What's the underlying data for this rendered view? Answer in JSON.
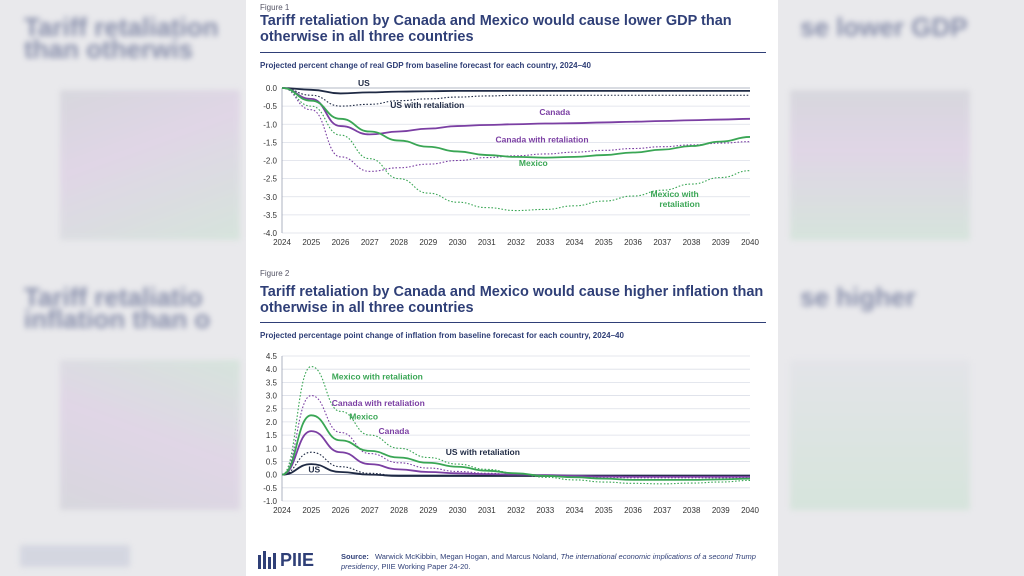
{
  "figure1": {
    "label": "Figure 1",
    "title": "Tariff retaliation by Canada and Mexico would cause lower GDP than otherwise in all three countries",
    "subtitle": "Projected percent change of real GDP from baseline forecast for each country, 2024–40",
    "chart_data": {
      "type": "line",
      "x": [
        2024,
        2025,
        2026,
        2027,
        2028,
        2029,
        2030,
        2031,
        2032,
        2033,
        2034,
        2035,
        2036,
        2037,
        2038,
        2039,
        2040
      ],
      "ylim": [
        -4.0,
        0.0
      ],
      "yticks": [
        "0.0",
        "-0.5",
        "-1.0",
        "-1.5",
        "-2.0",
        "-2.5",
        "-3.0",
        "-3.5",
        "-4.0"
      ],
      "series": [
        {
          "name": "US",
          "color": "#1f2a44",
          "dashed": false,
          "values": [
            0,
            -0.05,
            -0.15,
            -0.12,
            -0.1,
            -0.09,
            -0.08,
            -0.08,
            -0.08,
            -0.08,
            -0.08,
            -0.08,
            -0.08,
            -0.08,
            -0.08,
            -0.08,
            -0.08
          ]
        },
        {
          "name": "US with retaliation",
          "color": "#1f2a44",
          "dashed": true,
          "values": [
            0,
            -0.2,
            -0.5,
            -0.45,
            -0.35,
            -0.3,
            -0.25,
            -0.22,
            -0.2,
            -0.2,
            -0.2,
            -0.2,
            -0.2,
            -0.2,
            -0.2,
            -0.2,
            -0.2
          ]
        },
        {
          "name": "Canada",
          "color": "#7b3fa3",
          "dashed": false,
          "values": [
            0,
            -0.3,
            -1.05,
            -1.28,
            -1.2,
            -1.12,
            -1.05,
            -1.02,
            -1.0,
            -0.98,
            -0.97,
            -0.95,
            -0.93,
            -0.91,
            -0.89,
            -0.87,
            -0.85
          ]
        },
        {
          "name": "Canada with retaliation",
          "color": "#7b3fa3",
          "dashed": true,
          "values": [
            0,
            -0.6,
            -1.9,
            -2.3,
            -2.2,
            -2.1,
            -2.0,
            -1.92,
            -1.87,
            -1.82,
            -1.77,
            -1.72,
            -1.67,
            -1.62,
            -1.57,
            -1.52,
            -1.48
          ]
        },
        {
          "name": "Mexico",
          "color": "#3aa655",
          "dashed": false,
          "values": [
            0,
            -0.35,
            -0.85,
            -1.2,
            -1.45,
            -1.62,
            -1.75,
            -1.85,
            -1.9,
            -1.92,
            -1.9,
            -1.85,
            -1.78,
            -1.7,
            -1.6,
            -1.48,
            -1.35
          ]
        },
        {
          "name": "Mexico with retaliation",
          "color": "#3aa655",
          "dashed": true,
          "values": [
            0,
            -0.5,
            -1.3,
            -1.95,
            -2.5,
            -2.9,
            -3.15,
            -3.3,
            -3.38,
            -3.35,
            -3.25,
            -3.12,
            -2.98,
            -2.82,
            -2.65,
            -2.47,
            -2.28
          ]
        }
      ],
      "labels": {
        "us": "US",
        "us_ret": "US with retaliation",
        "canada": "Canada",
        "canada_ret": "Canada with retaliation",
        "mexico": "Mexico",
        "mexico_ret_1": "Mexico with",
        "mexico_ret_2": "retaliation"
      }
    }
  },
  "figure2": {
    "label": "Figure 2",
    "title": "Tariff retaliation by Canada and Mexico would cause higher inflation than otherwise in all three countries",
    "subtitle": "Projected percentage point change of inflation from baseline forecast for each country, 2024–40",
    "chart_data": {
      "type": "line",
      "x": [
        2024,
        2025,
        2026,
        2027,
        2028,
        2029,
        2030,
        2031,
        2032,
        2033,
        2034,
        2035,
        2036,
        2037,
        2038,
        2039,
        2040
      ],
      "ylim": [
        -1.0,
        4.5
      ],
      "yticks": [
        "4.5",
        "4.0",
        "3.5",
        "3.0",
        "2.5",
        "2.0",
        "1.5",
        "1.0",
        "0.5",
        "0.0",
        "-0.5",
        "-1.0"
      ],
      "series": [
        {
          "name": "US",
          "color": "#1f2a44",
          "dashed": false,
          "values": [
            0,
            0.4,
            0.1,
            0.0,
            -0.05,
            -0.05,
            -0.05,
            -0.05,
            -0.05,
            -0.05,
            -0.05,
            -0.05,
            -0.05,
            -0.05,
            -0.05,
            -0.05,
            -0.05
          ]
        },
        {
          "name": "US with retaliation",
          "color": "#1f2a44",
          "dashed": true,
          "values": [
            0,
            0.85,
            0.3,
            0.05,
            -0.05,
            -0.05,
            -0.05,
            -0.05,
            -0.05,
            -0.05,
            -0.05,
            -0.05,
            -0.05,
            -0.05,
            -0.05,
            -0.05,
            -0.05
          ]
        },
        {
          "name": "Canada",
          "color": "#7b3fa3",
          "dashed": false,
          "values": [
            0,
            1.65,
            0.85,
            0.4,
            0.2,
            0.1,
            0.05,
            0.02,
            0.0,
            -0.02,
            -0.05,
            -0.07,
            -0.08,
            -0.08,
            -0.08,
            -0.08,
            -0.08
          ]
        },
        {
          "name": "Canada with retaliation",
          "color": "#7b3fa3",
          "dashed": true,
          "values": [
            0,
            3.0,
            1.6,
            0.8,
            0.45,
            0.25,
            0.12,
            0.05,
            0.0,
            -0.05,
            -0.08,
            -0.1,
            -0.12,
            -0.12,
            -0.12,
            -0.12,
            -0.12
          ]
        },
        {
          "name": "Mexico",
          "color": "#3aa655",
          "dashed": false,
          "values": [
            0,
            2.25,
            1.3,
            0.9,
            0.65,
            0.45,
            0.3,
            0.15,
            0.05,
            -0.05,
            -0.1,
            -0.15,
            -0.2,
            -0.2,
            -0.2,
            -0.18,
            -0.15
          ]
        },
        {
          "name": "Mexico with retaliation",
          "color": "#3aa655",
          "dashed": true,
          "values": [
            0,
            4.1,
            2.4,
            1.5,
            1.0,
            0.65,
            0.4,
            0.2,
            0.05,
            -0.1,
            -0.2,
            -0.28,
            -0.33,
            -0.35,
            -0.32,
            -0.28,
            -0.22
          ]
        }
      ],
      "labels": {
        "mexico_ret": "Mexico with retaliation",
        "canada_ret": "Canada with retaliation",
        "mexico": "Mexico",
        "canada": "Canada",
        "us_ret": "US with retaliation",
        "us": "US"
      }
    }
  },
  "footer": {
    "logo": "PIIE",
    "source_label": "Source:",
    "source_text": "Warwick McKibbin, Megan Hogan, and Marcus Noland, ",
    "source_title": "The international economic implications of a second Trump presidency",
    "source_tail": ", PIIE Working Paper 24-20."
  },
  "background": {
    "left_title_1": "Tariff retaliation",
    "left_title_2": "than otherwis",
    "left_title_3": "Tariff retaliatio",
    "left_title_4": "inflation than o",
    "right_title_1": "se lower GDP",
    "right_title_2": "se higher"
  }
}
